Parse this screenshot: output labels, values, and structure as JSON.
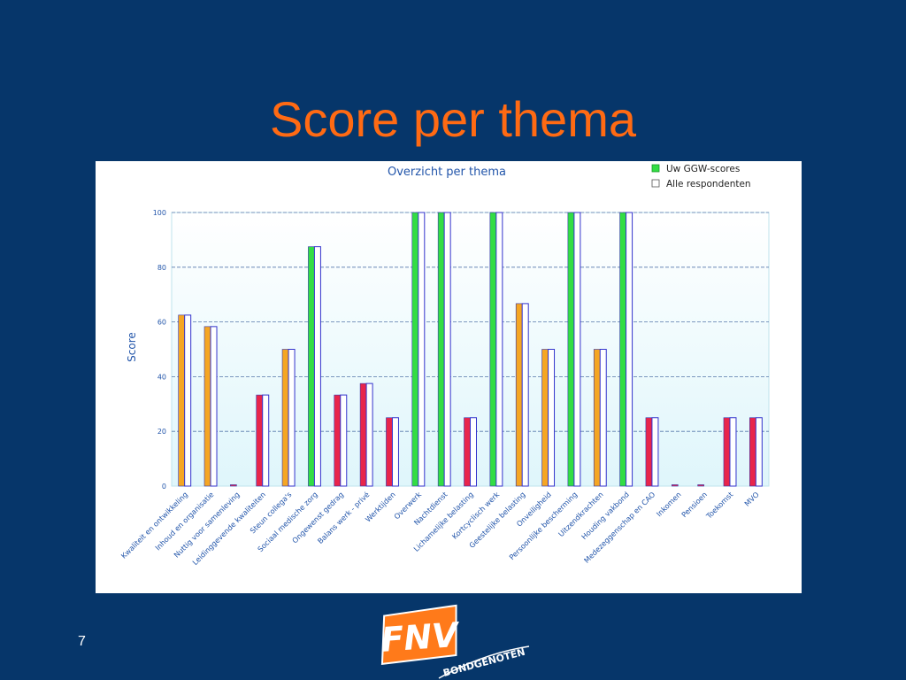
{
  "slide": {
    "title": "Score per thema",
    "page_number": "7",
    "logo_text": "FNV",
    "logo_subtext": "BONDGENOTEN"
  },
  "colors": {
    "background": "#06366a",
    "title": "#ff6a13",
    "bar_green": "#33dd44",
    "bar_orange": "#f5a623",
    "bar_red": "#e8254b",
    "respondent_bar": "#ffffff",
    "respondent_border": "#3333cc",
    "plot_bg": "#e6f8fd",
    "text_blue": "#2255aa"
  },
  "chart_data": {
    "type": "bar",
    "title": "Overzicht per thema",
    "ylabel": "Score",
    "xlabel": "",
    "ylim": [
      0,
      100
    ],
    "yticks": [
      0,
      20,
      40,
      60,
      80,
      100
    ],
    "grid": true,
    "legend_position": "top-right",
    "categories": [
      "Kwaliteit en ontwikkeling",
      "Inhoud en organisatie",
      "Nuttig voor samenleving",
      "Leidinggevende kwaliteiten",
      "Steun collega's",
      "Sociaal medische zorg",
      "Ongewenst gedrag",
      "Balans werk - privé",
      "Werktijden",
      "Overwerk",
      "Nachtdienst",
      "Lichamelijke belasting",
      "Kortcyclisch werk",
      "Geestelijke belasting",
      "Onveiligheid",
      "Persoonlijke bescherming",
      "Uitzendkrachten",
      "Houding vakbond",
      "Medezeggenschap en CAO",
      "Inkomen",
      "Pensioen",
      "Toekomst",
      "MVO"
    ],
    "series": [
      {
        "name": "Uw GGW-scores",
        "values": [
          62.5,
          58.3,
          0.5,
          33.3,
          50,
          87.5,
          33.3,
          37.5,
          25,
          100,
          100,
          25,
          100,
          66.7,
          50,
          100,
          50,
          100,
          25,
          0.5,
          0.5,
          25,
          25
        ],
        "colors": [
          "orange",
          "orange",
          "red",
          "red",
          "orange",
          "green",
          "red",
          "red",
          "red",
          "green",
          "green",
          "red",
          "green",
          "orange",
          "orange",
          "green",
          "orange",
          "green",
          "red",
          "red",
          "red",
          "red",
          "red"
        ]
      },
      {
        "name": "Alle respondenten",
        "values": [
          62.5,
          58.3,
          0,
          33.3,
          50,
          87.5,
          33.3,
          37.5,
          25,
          100,
          100,
          25,
          100,
          66.7,
          50,
          100,
          50,
          100,
          25,
          0,
          0,
          25,
          25
        ]
      }
    ]
  }
}
